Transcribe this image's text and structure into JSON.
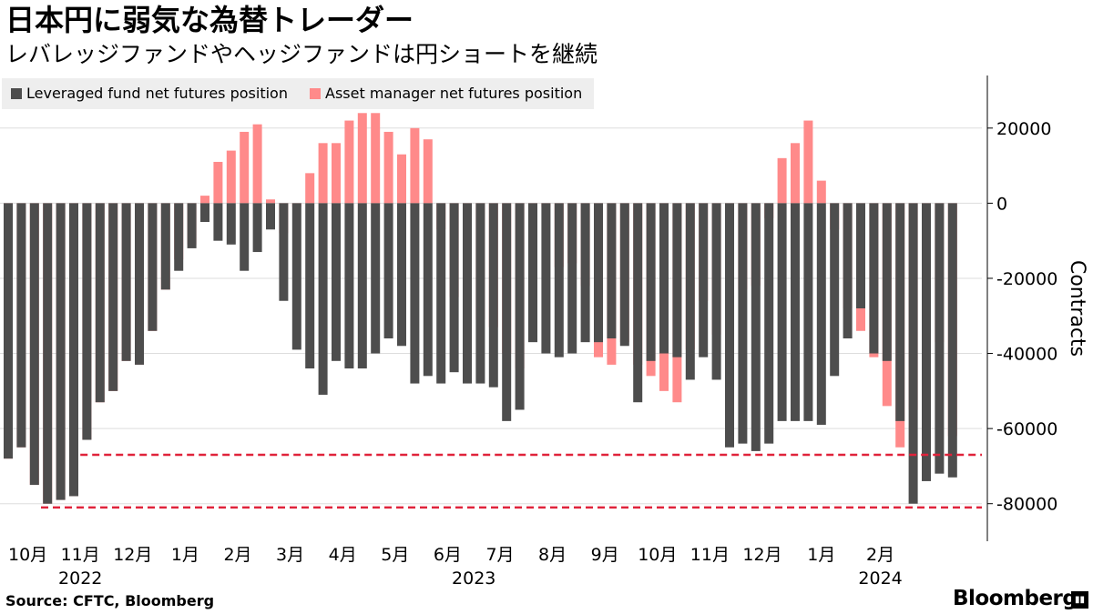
{
  "header": {
    "title": "日本円に弱気な為替トレーダー",
    "subtitle": "レバレッジファンドやヘッジファンドは円ショートを継続"
  },
  "footer": {
    "source": "Source: CFTC, Bloomberg",
    "brand": "Bloomberg"
  },
  "colors": {
    "leveraged": "#4d4d4d",
    "asset_manager": "#ff8a8a",
    "reference_line": "#e0233b",
    "grid": "#dddddd",
    "legend_bg": "#eeeeee"
  },
  "chart_data": {
    "type": "bar",
    "bar_mode": "overlay",
    "title": "日本円に弱気な為替トレーダー",
    "subtitle": "レバレッジファンドやヘッジファンドは円ショートを継続",
    "ylabel": "Contracts",
    "ylim": [
      -90000,
      34000
    ],
    "yticks": [
      20000,
      0,
      -20000,
      -40000,
      -60000,
      -80000
    ],
    "ytick_labels": [
      "20000",
      "0",
      "-20000",
      "-40000",
      "-60000",
      "-80000"
    ],
    "grid": true,
    "legend_position": "top-left",
    "x_month_labels": [
      {
        "label": "10月",
        "index": 1.5
      },
      {
        "label": "11月",
        "index": 5.5
      },
      {
        "label": "12月",
        "index": 9.5
      },
      {
        "label": "1月",
        "index": 13.5
      },
      {
        "label": "2月",
        "index": 17.5
      },
      {
        "label": "3月",
        "index": 21.5
      },
      {
        "label": "4月",
        "index": 25.5
      },
      {
        "label": "5月",
        "index": 29.5
      },
      {
        "label": "6月",
        "index": 33.5
      },
      {
        "label": "7月",
        "index": 37.5
      },
      {
        "label": "8月",
        "index": 41.5
      },
      {
        "label": "9月",
        "index": 45.5
      },
      {
        "label": "10月",
        "index": 49.5
      },
      {
        "label": "11月",
        "index": 53.5
      },
      {
        "label": "12月",
        "index": 57.5
      },
      {
        "label": "1月",
        "index": 62
      },
      {
        "label": "2月",
        "index": 66.5
      }
    ],
    "x_year_labels": [
      {
        "label": "2022",
        "index": 5.5
      },
      {
        "label": "2023",
        "index": 35.5
      },
      {
        "label": "2024",
        "index": 66.5
      }
    ],
    "reference_lines": [
      {
        "y": -67000,
        "from_index": 5.5
      },
      {
        "y": -81000,
        "from_index": 2.5
      }
    ],
    "series": [
      {
        "name": "Leveraged fund net futures position",
        "color": "#4d4d4d",
        "values": [
          -68000,
          -65000,
          -75000,
          -80000,
          -79000,
          -78000,
          -63000,
          -53000,
          -50000,
          -42000,
          -43000,
          -34000,
          -23000,
          -18000,
          -12000,
          -5000,
          -10000,
          -11000,
          -18000,
          -13000,
          -7000,
          -26000,
          -39000,
          -44000,
          -51000,
          -42000,
          -44000,
          -44000,
          -40000,
          -36000,
          -38000,
          -48000,
          -46000,
          -48000,
          -45000,
          -48000,
          -48000,
          -49000,
          -58000,
          -55000,
          -37000,
          -40000,
          -41000,
          -40000,
          -37000,
          -37000,
          -36000,
          -38000,
          -53000,
          -42000,
          -40000,
          -41000,
          -47000,
          -41000,
          -47000,
          -65000,
          -64000,
          -66000,
          -64000,
          -58000,
          -58000,
          -58000,
          -59000,
          -46000,
          -36000,
          -28000,
          -40000,
          -42000,
          -58000,
          -80000,
          -74000,
          -72000,
          -73000
        ]
      },
      {
        "name": "Asset manager net futures position",
        "color": "#ff8a8a",
        "values": [
          -68000,
          -65000,
          -75000,
          -80000,
          -79000,
          -78000,
          -63000,
          -53000,
          -50000,
          -42000,
          -43000,
          -34000,
          -23000,
          -15000,
          -11000,
          2000,
          11000,
          14000,
          19000,
          21000,
          1000,
          -8000,
          -1000,
          8000,
          16000,
          16000,
          22000,
          24000,
          24000,
          19000,
          13000,
          20000,
          17000,
          -7000,
          -25000,
          -34000,
          -31000,
          -33000,
          -40000,
          -44000,
          -30000,
          -1000,
          -17000,
          -16000,
          -22000,
          -41000,
          -43000,
          -37000,
          -43000,
          -46000,
          -50000,
          -53000,
          -39000,
          -26000,
          -35000,
          -38000,
          -23000,
          -22000,
          -4000,
          12000,
          16000,
          22000,
          6000,
          -7000,
          -28000,
          -34000,
          -41000,
          -54000,
          -65000,
          -55000,
          -49000,
          -37000,
          -62000
        ]
      }
    ]
  }
}
